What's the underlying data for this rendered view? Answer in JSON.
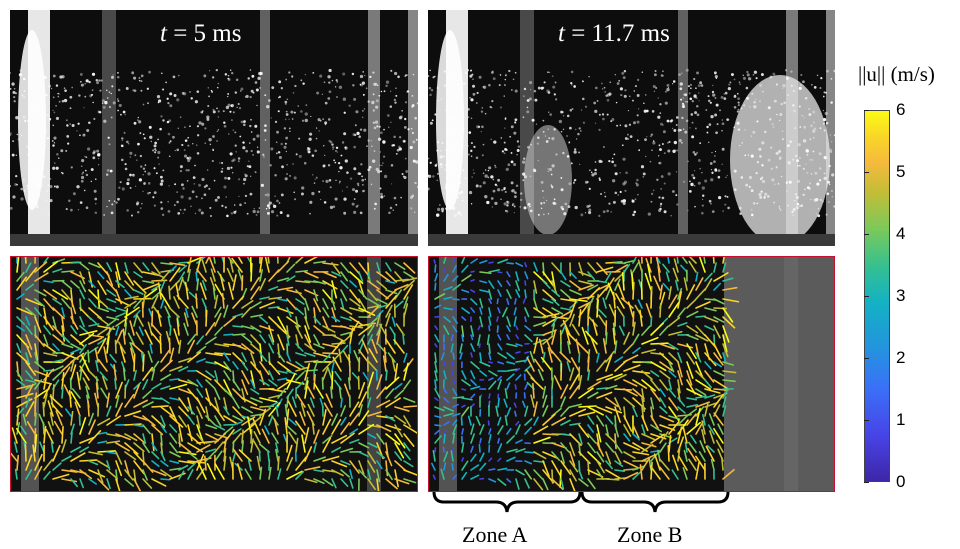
{
  "panels": {
    "top_left_title_prefix": "t",
    "top_left_title_value": " = 5 ms",
    "top_right_title_prefix": "t",
    "top_right_title_value": " = 11.7 ms"
  },
  "colorbar": {
    "label": "||u|| (m/s)",
    "ticks": [
      "6",
      "5",
      "4",
      "3",
      "2",
      "1",
      "0"
    ],
    "colormap": "parula",
    "range": [
      0,
      6
    ]
  },
  "zones": {
    "zone_a": "Zone A",
    "zone_b": "Zone B"
  },
  "colors": {
    "background": "#ffffff",
    "frame_border": "#c8102e",
    "photo_dark": "#0d0d0d"
  }
}
